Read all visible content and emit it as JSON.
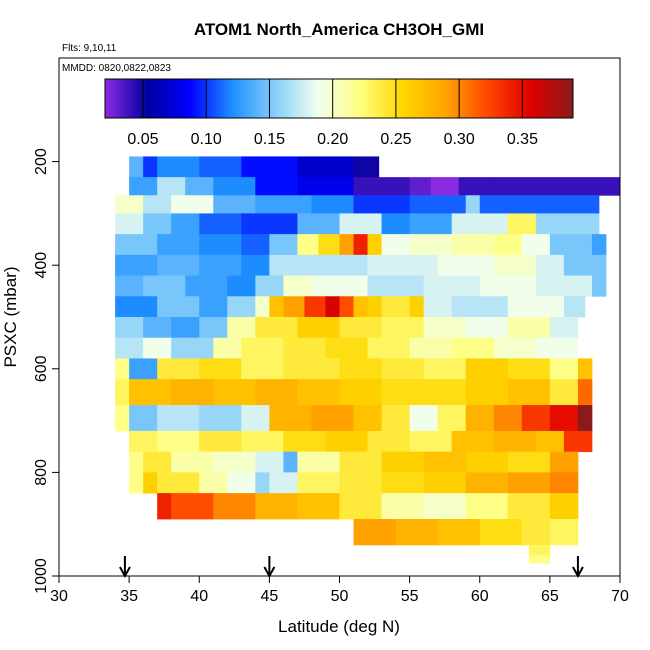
{
  "chart_data": {
    "type": "heatmap",
    "title": "ATOM1 North_America CH3OH_GMI",
    "flights_note": "Flts: 9,10,11",
    "dates_note": "MMDD: 0820,0822,0823",
    "xlabel": "Latitude (deg N)",
    "ylabel": "PSXC (mbar)",
    "xlim": [
      30,
      70
    ],
    "ylim": [
      1000,
      0
    ],
    "x_ticks": [
      "30",
      "35",
      "40",
      "45",
      "50",
      "55",
      "60",
      "65",
      "70"
    ],
    "y_ticks": [
      "200",
      "400",
      "600",
      "800",
      "1000"
    ],
    "colorbar": {
      "range": [
        0.02,
        0.39
      ],
      "tick_values": [
        0.05,
        0.1,
        0.15,
        0.2,
        0.25,
        0.3,
        0.35
      ],
      "tick_labels": [
        "0.05",
        "0.10",
        "0.15",
        "0.20",
        "0.25",
        "0.30",
        "0.35"
      ],
      "colors": [
        "#8a2be2",
        "#0000a0",
        "#0000ff",
        "#1e90ff",
        "#87cefa",
        "#f0fff0",
        "#ffff80",
        "#ffd700",
        "#ffa500",
        "#ff4500",
        "#e00000",
        "#8b1a1a"
      ]
    },
    "arrows_latitude": [
      34.7,
      45.0,
      67.0
    ],
    "rows": [
      {
        "p": [
          190,
          230
        ],
        "segs": [
          [
            35,
            36,
            0.14
          ],
          [
            36,
            37,
            0.1
          ],
          [
            37,
            40,
            0.12
          ],
          [
            40,
            43,
            0.11
          ],
          [
            43,
            47,
            0.09
          ],
          [
            47,
            51,
            0.07
          ],
          [
            51,
            52.8,
            0.05
          ]
        ]
      },
      {
        "p": [
          230,
          265
        ],
        "segs": [
          [
            35,
            37,
            0.13
          ],
          [
            37,
            39,
            0.17
          ],
          [
            39,
            41,
            0.14
          ],
          [
            41,
            44,
            0.12
          ],
          [
            44,
            47,
            0.09
          ],
          [
            47,
            51,
            0.08
          ],
          [
            51,
            55,
            0.04
          ],
          [
            55,
            56.5,
            0.03
          ],
          [
            56.5,
            58.5,
            0.01
          ],
          [
            58.5,
            61,
            0.04
          ],
          [
            61,
            70,
            0.04
          ]
        ]
      },
      {
        "p": [
          265,
          300
        ],
        "segs": [
          [
            34,
            36,
            0.2
          ],
          [
            36,
            38,
            0.17
          ],
          [
            38,
            41,
            0.19
          ],
          [
            41,
            44,
            0.14
          ],
          [
            44,
            48,
            0.13
          ],
          [
            48,
            51,
            0.12
          ],
          [
            51,
            55,
            0.1
          ],
          [
            55,
            59,
            0.11
          ],
          [
            59,
            60,
            0.16
          ],
          [
            60,
            68.5,
            0.11
          ]
        ]
      },
      {
        "p": [
          300,
          340
        ],
        "segs": [
          [
            34,
            36,
            0.18
          ],
          [
            36,
            38,
            0.15
          ],
          [
            38,
            40,
            0.13
          ],
          [
            40,
            43,
            0.11
          ],
          [
            43,
            47,
            0.1
          ],
          [
            47,
            50,
            0.14
          ],
          [
            50,
            53,
            0.18
          ],
          [
            53,
            55,
            0.12
          ],
          [
            55,
            58,
            0.13
          ],
          [
            58,
            62,
            0.18
          ],
          [
            62,
            64,
            0.23
          ],
          [
            64,
            68.5,
            0.16
          ]
        ]
      },
      {
        "p": [
          340,
          380
        ],
        "segs": [
          [
            34,
            37,
            0.15
          ],
          [
            37,
            40,
            0.13
          ],
          [
            40,
            43,
            0.12
          ],
          [
            43,
            45,
            0.11
          ],
          [
            45,
            47,
            0.15
          ],
          [
            47,
            48.5,
            0.22
          ],
          [
            48.5,
            50,
            0.25
          ],
          [
            50,
            51,
            0.29
          ],
          [
            51,
            52,
            0.34
          ],
          [
            52,
            53,
            0.26
          ],
          [
            53,
            55,
            0.19
          ],
          [
            55,
            58,
            0.2
          ],
          [
            58,
            61,
            0.21
          ],
          [
            61,
            63,
            0.22
          ],
          [
            63,
            65,
            0.19
          ],
          [
            65,
            68,
            0.15
          ],
          [
            68,
            69,
            0.13
          ]
        ]
      },
      {
        "p": [
          380,
          420
        ],
        "segs": [
          [
            34,
            37,
            0.13
          ],
          [
            37,
            40,
            0.14
          ],
          [
            40,
            43,
            0.13
          ],
          [
            43,
            45,
            0.12
          ],
          [
            45,
            52,
            0.17
          ],
          [
            52,
            57,
            0.18
          ],
          [
            57,
            61,
            0.19
          ],
          [
            61,
            64,
            0.2
          ],
          [
            64,
            66,
            0.18
          ],
          [
            66,
            69,
            0.15
          ]
        ]
      },
      {
        "p": [
          420,
          460
        ],
        "segs": [
          [
            34,
            36,
            0.14
          ],
          [
            36,
            39,
            0.15
          ],
          [
            39,
            42,
            0.13
          ],
          [
            42,
            44,
            0.12
          ],
          [
            44,
            46,
            0.16
          ],
          [
            46,
            48,
            0.2
          ],
          [
            48,
            52,
            0.19
          ],
          [
            52,
            56,
            0.17
          ],
          [
            56,
            60,
            0.18
          ],
          [
            60,
            64,
            0.19
          ],
          [
            64,
            68,
            0.18
          ],
          [
            68,
            69,
            0.15
          ]
        ]
      },
      {
        "p": [
          460,
          500
        ],
        "segs": [
          [
            34,
            37,
            0.12
          ],
          [
            37,
            40,
            0.15
          ],
          [
            40,
            42,
            0.13
          ],
          [
            42,
            44,
            0.16
          ],
          [
            44,
            45,
            0.2
          ],
          [
            45,
            46,
            0.27
          ],
          [
            46,
            47.5,
            0.29
          ],
          [
            47.5,
            49,
            0.33
          ],
          [
            49,
            50,
            0.36
          ],
          [
            50,
            51,
            0.32
          ],
          [
            51,
            52,
            0.27
          ],
          [
            52,
            53,
            0.26
          ],
          [
            53,
            55,
            0.24
          ],
          [
            55,
            56,
            0.26
          ],
          [
            56,
            58,
            0.18
          ],
          [
            58,
            62,
            0.17
          ],
          [
            62,
            66,
            0.19
          ],
          [
            66,
            67.5,
            0.17
          ]
        ]
      },
      {
        "p": [
          500,
          540
        ],
        "segs": [
          [
            34,
            36,
            0.16
          ],
          [
            36,
            38,
            0.14
          ],
          [
            38,
            40,
            0.13
          ],
          [
            40,
            42,
            0.15
          ],
          [
            42,
            44,
            0.21
          ],
          [
            44,
            47,
            0.24
          ],
          [
            47,
            50,
            0.26
          ],
          [
            50,
            53,
            0.24
          ],
          [
            53,
            56,
            0.23
          ],
          [
            56,
            59,
            0.2
          ],
          [
            59,
            62,
            0.19
          ],
          [
            62,
            65,
            0.21
          ],
          [
            65,
            67,
            0.18
          ]
        ]
      },
      {
        "p": [
          540,
          580
        ],
        "segs": [
          [
            34,
            36,
            0.17
          ],
          [
            36,
            38,
            0.19
          ],
          [
            38,
            41,
            0.16
          ],
          [
            41,
            43,
            0.21
          ],
          [
            43,
            46,
            0.23
          ],
          [
            46,
            49,
            0.24
          ],
          [
            49,
            52,
            0.25
          ],
          [
            52,
            55,
            0.23
          ],
          [
            55,
            58,
            0.21
          ],
          [
            58,
            61,
            0.22
          ],
          [
            61,
            64,
            0.2
          ],
          [
            64,
            67,
            0.19
          ]
        ]
      },
      {
        "p": [
          580,
          620
        ],
        "segs": [
          [
            34,
            35,
            0.22
          ],
          [
            35,
            37,
            0.13
          ],
          [
            37,
            40,
            0.24
          ],
          [
            40,
            43,
            0.25
          ],
          [
            43,
            46,
            0.23
          ],
          [
            46,
            50,
            0.24
          ],
          [
            50,
            53,
            0.25
          ],
          [
            53,
            56,
            0.24
          ],
          [
            56,
            59,
            0.23
          ],
          [
            59,
            62,
            0.26
          ],
          [
            62,
            65,
            0.25
          ],
          [
            65,
            67,
            0.22
          ],
          [
            67,
            68,
            0.27
          ]
        ]
      },
      {
        "p": [
          620,
          670
        ],
        "segs": [
          [
            34,
            35,
            0.23
          ],
          [
            35,
            38,
            0.27
          ],
          [
            38,
            41,
            0.28
          ],
          [
            41,
            44,
            0.27
          ],
          [
            44,
            47,
            0.28
          ],
          [
            47,
            50,
            0.27
          ],
          [
            50,
            53,
            0.26
          ],
          [
            53,
            56,
            0.25
          ],
          [
            56,
            59,
            0.25
          ],
          [
            59,
            62,
            0.26
          ],
          [
            62,
            65,
            0.27
          ],
          [
            65,
            67,
            0.24
          ],
          [
            67,
            68,
            0.31
          ]
        ]
      },
      {
        "p": [
          670,
          720
        ],
        "segs": [
          [
            34,
            35,
            0.22
          ],
          [
            35,
            37,
            0.15
          ],
          [
            37,
            40,
            0.17
          ],
          [
            40,
            43,
            0.16
          ],
          [
            43,
            45,
            0.18
          ],
          [
            45,
            48,
            0.28
          ],
          [
            48,
            51,
            0.29
          ],
          [
            51,
            53,
            0.27
          ],
          [
            53,
            55,
            0.24
          ],
          [
            55,
            57,
            0.19
          ],
          [
            57,
            59,
            0.23
          ],
          [
            59,
            61,
            0.28
          ],
          [
            61,
            63,
            0.3
          ],
          [
            63,
            65,
            0.33
          ],
          [
            65,
            67,
            0.35
          ],
          [
            67,
            68,
            0.39
          ]
        ]
      },
      {
        "p": [
          720,
          760
        ],
        "segs": [
          [
            35,
            37,
            0.23
          ],
          [
            37,
            40,
            0.22
          ],
          [
            40,
            43,
            0.24
          ],
          [
            43,
            46,
            0.23
          ],
          [
            46,
            49,
            0.25
          ],
          [
            49,
            52,
            0.26
          ],
          [
            52,
            55,
            0.24
          ],
          [
            55,
            58,
            0.23
          ],
          [
            58,
            61,
            0.27
          ],
          [
            61,
            64,
            0.28
          ],
          [
            64,
            66,
            0.27
          ],
          [
            66,
            68,
            0.33
          ]
        ]
      },
      {
        "p": [
          760,
          800
        ],
        "segs": [
          [
            35,
            36,
            0.22
          ],
          [
            36,
            38,
            0.24
          ],
          [
            38,
            41,
            0.21
          ],
          [
            41,
            44,
            0.2
          ],
          [
            44,
            46,
            0.18
          ],
          [
            46,
            47,
            0.14
          ],
          [
            47,
            50,
            0.21
          ],
          [
            50,
            53,
            0.24
          ],
          [
            53,
            56,
            0.26
          ],
          [
            56,
            59,
            0.27
          ],
          [
            59,
            62,
            0.26
          ],
          [
            62,
            65,
            0.25
          ],
          [
            65,
            67,
            0.29
          ]
        ]
      },
      {
        "p": [
          800,
          840
        ],
        "segs": [
          [
            35,
            36,
            0.22
          ],
          [
            36,
            37,
            0.26
          ],
          [
            37,
            40,
            0.24
          ],
          [
            40,
            42,
            0.21
          ],
          [
            42,
            44,
            0.19
          ],
          [
            44,
            45,
            0.16
          ],
          [
            45,
            47,
            0.18
          ],
          [
            47,
            50,
            0.23
          ],
          [
            50,
            53,
            0.24
          ],
          [
            53,
            56,
            0.25
          ],
          [
            56,
            59,
            0.26
          ],
          [
            59,
            62,
            0.28
          ],
          [
            62,
            65,
            0.29
          ],
          [
            65,
            67,
            0.3
          ]
        ]
      },
      {
        "p": [
          840,
          890
        ],
        "segs": [
          [
            37,
            38,
            0.34
          ],
          [
            38,
            41,
            0.32
          ],
          [
            41,
            44,
            0.3
          ],
          [
            44,
            47,
            0.28
          ],
          [
            47,
            50,
            0.27
          ],
          [
            50,
            53,
            0.24
          ],
          [
            53,
            56,
            0.21
          ],
          [
            56,
            59,
            0.2
          ],
          [
            59,
            62,
            0.22
          ],
          [
            62,
            65,
            0.24
          ],
          [
            65,
            67,
            0.26
          ]
        ]
      },
      {
        "p": [
          890,
          940
        ],
        "segs": [
          [
            51,
            54,
            0.29
          ],
          [
            54,
            57,
            0.28
          ],
          [
            57,
            60,
            0.27
          ],
          [
            60,
            63,
            0.25
          ],
          [
            63,
            65,
            0.24
          ],
          [
            65,
            67,
            0.23
          ]
        ]
      },
      {
        "p": [
          940,
          960
        ],
        "segs": [
          [
            63.5,
            65,
            0.23
          ]
        ]
      },
      {
        "p": [
          960,
          975
        ],
        "segs": [
          [
            63.5,
            65,
            0.22
          ]
        ]
      }
    ]
  }
}
